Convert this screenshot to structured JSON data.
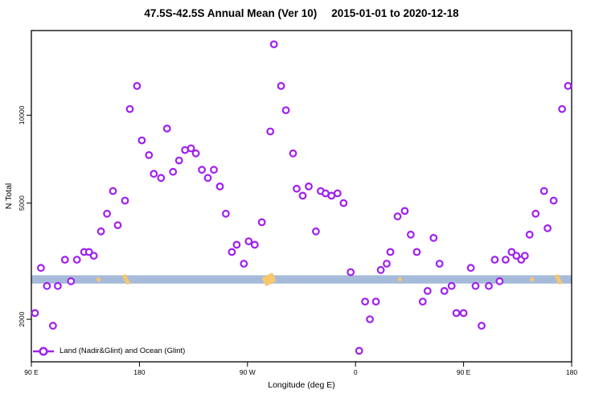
{
  "title": {
    "main": "47.5S-42.5S Annual Mean (Ver 10)",
    "dates": "2015-01-01 to 2020-12-18"
  },
  "chart_data": {
    "type": "scatter",
    "title": "47.5S-42.5S Annual Mean (Ver 10)  2015-01-01 to 2020-12-18",
    "xlabel": "Longitude (deg E)",
    "ylabel": "N Total",
    "grid": false,
    "x_axis": {
      "lim": [
        90,
        540
      ],
      "note": "longitude unwrapped eastward starting at 90E (90E,180,90W,0,90E,180)",
      "ticks": [
        {
          "label": "90 E",
          "lon": 90
        },
        {
          "label": "180",
          "lon": 180
        },
        {
          "label": "90 W",
          "lon": 270
        },
        {
          "label": "0",
          "lon": 360
        },
        {
          "label": "90 E",
          "lon": 450
        },
        {
          "label": "180",
          "lon": 540
        }
      ]
    },
    "y_axis": {
      "scale": "log",
      "lim": [
        1430,
        19500
      ],
      "ticks": [
        {
          "label": "2000",
          "value": 2000
        },
        {
          "label": "5000",
          "value": 5000
        },
        {
          "label": "10000",
          "value": 10000
        }
      ]
    },
    "legend": {
      "label": "Land (Nadir&Glint) and Ocean (Glint)",
      "marker": "open-circle-on-line",
      "position": "bottom-left"
    },
    "band": {
      "n_min": 2650,
      "n_max": 2830,
      "color": "#A6BBD9"
    },
    "band_marks": [
      {
        "lon": 146,
        "size": "small"
      },
      {
        "lon": 169,
        "size": "medium"
      },
      {
        "lon": 288,
        "size": "large"
      },
      {
        "lon": 397,
        "size": "small"
      },
      {
        "lon": 507,
        "size": "small"
      },
      {
        "lon": 529,
        "size": "medium"
      }
    ],
    "colors": {
      "point": "#A020F0",
      "band": "#A6BBD9",
      "marks": "#F6C76F",
      "axis": "#000000"
    },
    "series": [
      {
        "name": "Land (Nadir&Glint) and Ocean (Glint)",
        "color": "#A020F0",
        "points": [
          [
            178,
            12600
          ],
          [
            172,
            10500
          ],
          [
            203,
            9000
          ],
          [
            182,
            8200
          ],
          [
            188,
            7300
          ],
          [
            218,
            7600
          ],
          [
            223,
            7700
          ],
          [
            227,
            7400
          ],
          [
            213,
            7000
          ],
          [
            208,
            6400
          ],
          [
            192,
            6300
          ],
          [
            198,
            6100
          ],
          [
            232,
            6500
          ],
          [
            237,
            6100
          ],
          [
            158,
            5500
          ],
          [
            292,
            17500
          ],
          [
            298,
            12600
          ],
          [
            302,
            10400
          ],
          [
            289,
            8800
          ],
          [
            308,
            7400
          ],
          [
            242,
            6500
          ],
          [
            247,
            5700
          ],
          [
            311,
            5600
          ],
          [
            316,
            5300
          ],
          [
            321,
            5700
          ],
          [
            331,
            5500
          ],
          [
            335,
            5400
          ],
          [
            340,
            5300
          ],
          [
            345,
            5400
          ],
          [
            350,
            5000
          ],
          [
            537,
            12600
          ],
          [
            532,
            10500
          ],
          [
            517,
            5500
          ],
          [
            168,
            5100
          ],
          [
            153,
            4600
          ],
          [
            162,
            4200
          ],
          [
            148,
            4000
          ],
          [
            134,
            3400
          ],
          [
            138,
            3400
          ],
          [
            142,
            3300
          ],
          [
            118,
            3200
          ],
          [
            128,
            3200
          ],
          [
            98,
            3000
          ],
          [
            123,
            2700
          ],
          [
            103,
            2600
          ],
          [
            112,
            2600
          ],
          [
            93,
            2100
          ],
          [
            108,
            1900
          ],
          [
            252,
            4600
          ],
          [
            282,
            4300
          ],
          [
            327,
            4000
          ],
          [
            261,
            3600
          ],
          [
            271,
            3700
          ],
          [
            276,
            3600
          ],
          [
            257,
            3400
          ],
          [
            267,
            3100
          ],
          [
            356,
            2900
          ],
          [
            381,
            2950
          ],
          [
            386,
            3100
          ],
          [
            368,
            2300
          ],
          [
            377,
            2300
          ],
          [
            372,
            2000
          ],
          [
            363,
            1560
          ],
          [
            525,
            5100
          ],
          [
            395,
            4500
          ],
          [
            401,
            4700
          ],
          [
            510,
            4600
          ],
          [
            520,
            4100
          ],
          [
            505,
            3900
          ],
          [
            406,
            3900
          ],
          [
            425,
            3800
          ],
          [
            389,
            3400
          ],
          [
            411,
            3400
          ],
          [
            430,
            3100
          ],
          [
            456,
            3000
          ],
          [
            476,
            3200
          ],
          [
            485,
            3200
          ],
          [
            490,
            3400
          ],
          [
            494,
            3300
          ],
          [
            498,
            3200
          ],
          [
            501,
            3300
          ],
          [
            480,
            2700
          ],
          [
            460,
            2600
          ],
          [
            471,
            2600
          ],
          [
            440,
            2600
          ],
          [
            434,
            2500
          ],
          [
            420,
            2500
          ],
          [
            416,
            2300
          ],
          [
            444,
            2100
          ],
          [
            450,
            2100
          ],
          [
            465,
            1900
          ]
        ]
      }
    ]
  }
}
